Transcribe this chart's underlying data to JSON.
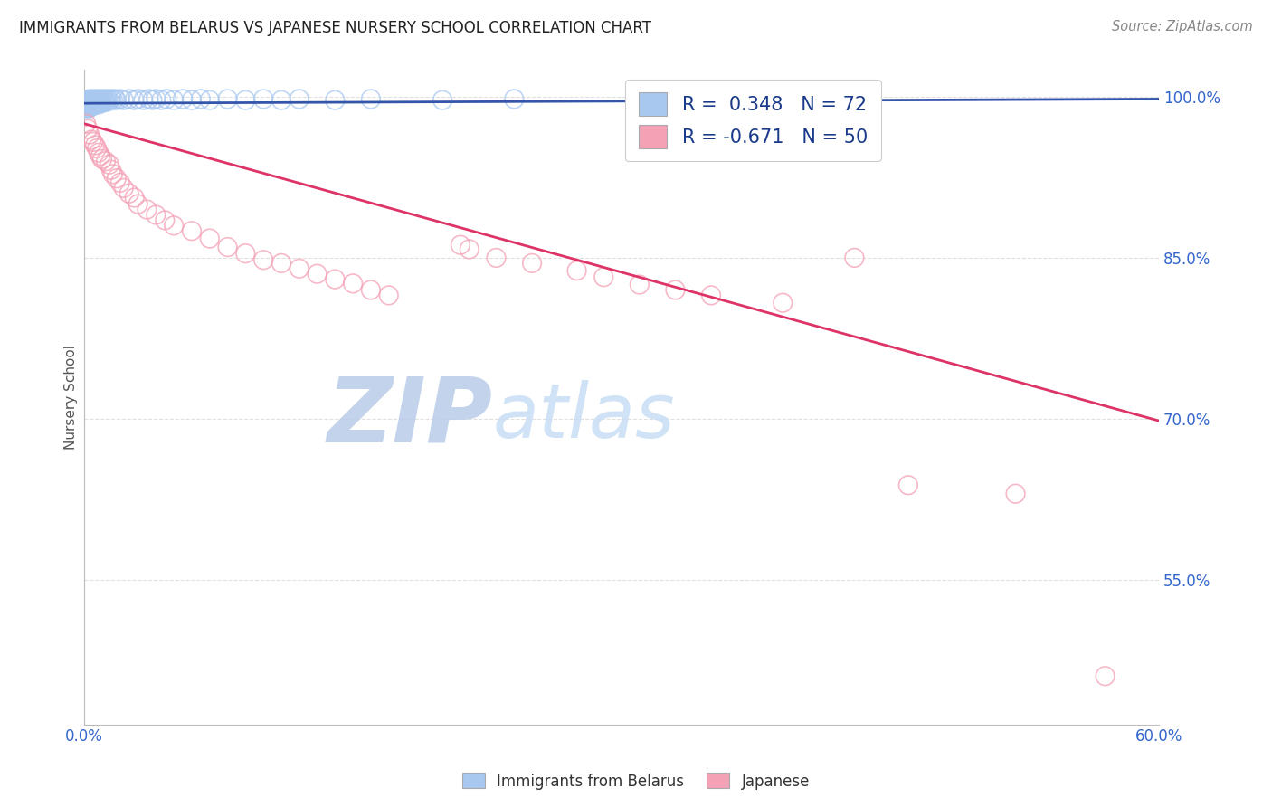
{
  "title": "IMMIGRANTS FROM BELARUS VS JAPANESE NURSERY SCHOOL CORRELATION CHART",
  "source": "Source: ZipAtlas.com",
  "ylabel": "Nursery School",
  "ytick_labels": [
    "100.0%",
    "85.0%",
    "70.0%",
    "55.0%"
  ],
  "ytick_values": [
    1.0,
    0.85,
    0.7,
    0.55
  ],
  "xlim": [
    0.0,
    0.6
  ],
  "ylim": [
    0.415,
    1.025
  ],
  "legend_blue_R": "R =  0.348",
  "legend_blue_N": "N = 72",
  "legend_pink_R": "R = -0.671",
  "legend_pink_N": "N = 50",
  "blue_color": "#a8c8f0",
  "pink_color": "#f4a0b5",
  "blue_line_color": "#3355aa",
  "pink_line_color": "#dd3366",
  "legend_text_color": "#1a3a8a",
  "grid_color": "#cccccc",
  "title_color": "#222222",
  "source_color": "#888888",
  "watermark_zip_color": "#b8cce8",
  "watermark_atlas_color": "#c8ddf5",
  "blue_scatter": [
    [
      0.001,
      0.996
    ],
    [
      0.001,
      0.994
    ],
    [
      0.001,
      0.992
    ],
    [
      0.001,
      0.99
    ],
    [
      0.002,
      0.997
    ],
    [
      0.002,
      0.995
    ],
    [
      0.002,
      0.993
    ],
    [
      0.002,
      0.991
    ],
    [
      0.002,
      0.989
    ],
    [
      0.003,
      0.998
    ],
    [
      0.003,
      0.996
    ],
    [
      0.003,
      0.994
    ],
    [
      0.003,
      0.992
    ],
    [
      0.003,
      0.99
    ],
    [
      0.004,
      0.997
    ],
    [
      0.004,
      0.995
    ],
    [
      0.004,
      0.993
    ],
    [
      0.004,
      0.991
    ],
    [
      0.005,
      0.998
    ],
    [
      0.005,
      0.996
    ],
    [
      0.005,
      0.994
    ],
    [
      0.005,
      0.992
    ],
    [
      0.006,
      0.997
    ],
    [
      0.006,
      0.995
    ],
    [
      0.006,
      0.993
    ],
    [
      0.007,
      0.998
    ],
    [
      0.007,
      0.996
    ],
    [
      0.007,
      0.994
    ],
    [
      0.008,
      0.997
    ],
    [
      0.008,
      0.995
    ],
    [
      0.008,
      0.993
    ],
    [
      0.009,
      0.998
    ],
    [
      0.009,
      0.996
    ],
    [
      0.009,
      0.994
    ],
    [
      0.01,
      0.997
    ],
    [
      0.01,
      0.995
    ],
    [
      0.011,
      0.998
    ],
    [
      0.011,
      0.996
    ],
    [
      0.012,
      0.997
    ],
    [
      0.012,
      0.995
    ],
    [
      0.013,
      0.998
    ],
    [
      0.013,
      0.996
    ],
    [
      0.014,
      0.997
    ],
    [
      0.015,
      0.998
    ],
    [
      0.016,
      0.997
    ],
    [
      0.017,
      0.998
    ],
    [
      0.018,
      0.997
    ],
    [
      0.02,
      0.998
    ],
    [
      0.022,
      0.997
    ],
    [
      0.025,
      0.998
    ],
    [
      0.028,
      0.997
    ],
    [
      0.03,
      0.998
    ],
    [
      0.033,
      0.997
    ],
    [
      0.036,
      0.998
    ],
    [
      0.038,
      0.997
    ],
    [
      0.04,
      0.998
    ],
    [
      0.043,
      0.997
    ],
    [
      0.046,
      0.998
    ],
    [
      0.05,
      0.997
    ],
    [
      0.055,
      0.998
    ],
    [
      0.06,
      0.997
    ],
    [
      0.065,
      0.998
    ],
    [
      0.07,
      0.997
    ],
    [
      0.08,
      0.998
    ],
    [
      0.09,
      0.997
    ],
    [
      0.1,
      0.998
    ],
    [
      0.11,
      0.997
    ],
    [
      0.12,
      0.998
    ],
    [
      0.14,
      0.997
    ],
    [
      0.16,
      0.998
    ],
    [
      0.2,
      0.997
    ],
    [
      0.24,
      0.998
    ]
  ],
  "pink_scatter": [
    [
      0.001,
      0.975
    ],
    [
      0.002,
      0.97
    ],
    [
      0.003,
      0.965
    ],
    [
      0.004,
      0.96
    ],
    [
      0.005,
      0.958
    ],
    [
      0.006,
      0.955
    ],
    [
      0.007,
      0.952
    ],
    [
      0.008,
      0.948
    ],
    [
      0.009,
      0.945
    ],
    [
      0.01,
      0.942
    ],
    [
      0.012,
      0.94
    ],
    [
      0.014,
      0.937
    ],
    [
      0.015,
      0.932
    ],
    [
      0.016,
      0.928
    ],
    [
      0.018,
      0.924
    ],
    [
      0.02,
      0.92
    ],
    [
      0.022,
      0.915
    ],
    [
      0.025,
      0.91
    ],
    [
      0.028,
      0.906
    ],
    [
      0.03,
      0.9
    ],
    [
      0.035,
      0.895
    ],
    [
      0.04,
      0.89
    ],
    [
      0.045,
      0.885
    ],
    [
      0.05,
      0.88
    ],
    [
      0.06,
      0.875
    ],
    [
      0.07,
      0.868
    ],
    [
      0.08,
      0.86
    ],
    [
      0.09,
      0.854
    ],
    [
      0.1,
      0.848
    ],
    [
      0.11,
      0.845
    ],
    [
      0.12,
      0.84
    ],
    [
      0.13,
      0.835
    ],
    [
      0.14,
      0.83
    ],
    [
      0.15,
      0.826
    ],
    [
      0.16,
      0.82
    ],
    [
      0.17,
      0.815
    ],
    [
      0.21,
      0.862
    ],
    [
      0.215,
      0.858
    ],
    [
      0.23,
      0.85
    ],
    [
      0.25,
      0.845
    ],
    [
      0.275,
      0.838
    ],
    [
      0.29,
      0.832
    ],
    [
      0.31,
      0.825
    ],
    [
      0.33,
      0.82
    ],
    [
      0.35,
      0.815
    ],
    [
      0.39,
      0.808
    ],
    [
      0.43,
      0.85
    ],
    [
      0.46,
      0.638
    ],
    [
      0.52,
      0.63
    ],
    [
      0.57,
      0.46
    ]
  ],
  "blue_trendline": [
    [
      0.0,
      0.994
    ],
    [
      0.6,
      0.998
    ]
  ],
  "pink_trendline": [
    [
      0.0,
      0.975
    ],
    [
      0.6,
      0.698
    ]
  ]
}
